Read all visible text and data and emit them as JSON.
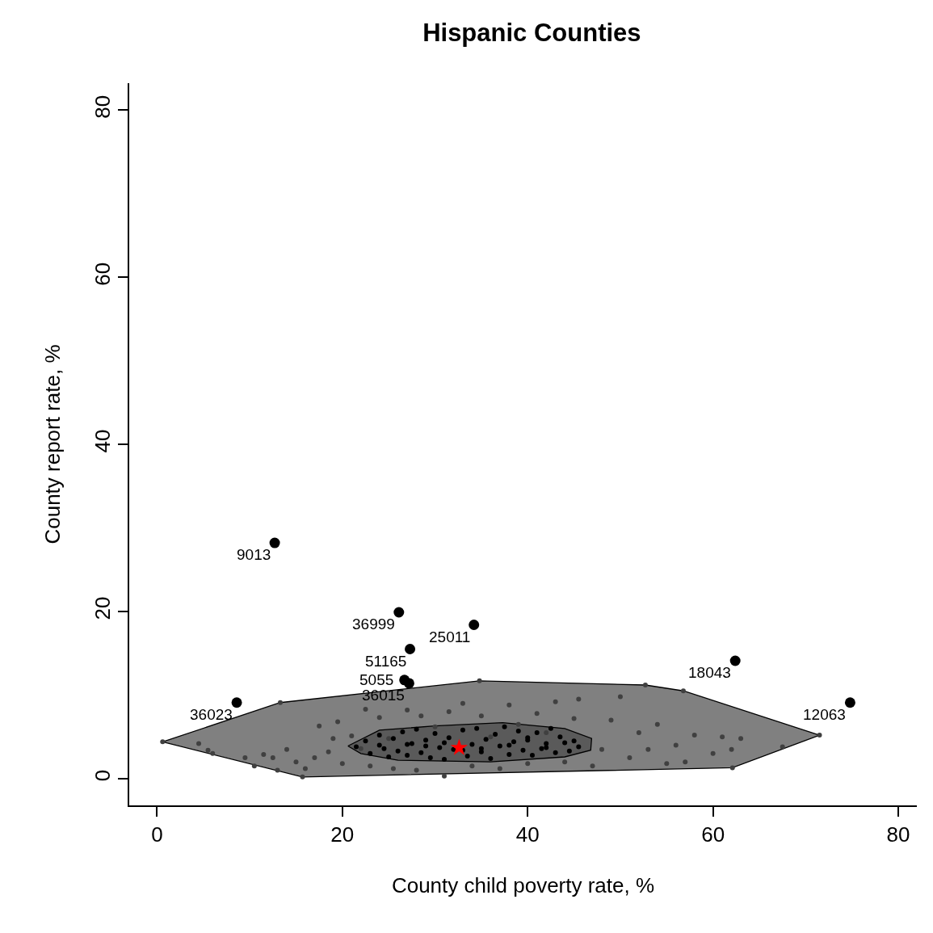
{
  "chart_data": {
    "type": "scatter",
    "title": "Hispanic Counties",
    "xlabel": "County child poverty rate, %",
    "ylabel": "County report rate, %",
    "xlim": [
      -3,
      82
    ],
    "ylim": [
      -3.2,
      83.2
    ],
    "xticks": [
      0,
      20,
      40,
      60,
      80
    ],
    "yticks": [
      0,
      20,
      40,
      60,
      80
    ],
    "series": [
      {
        "type": "area",
        "color": "#808080",
        "x": [
          0.6,
          13.3,
          34.8,
          52.7,
          56.8,
          71.5,
          62.1,
          15.7,
          0.6
        ],
        "values": [
          4.4,
          9.1,
          11.7,
          11.2,
          10.5,
          5.2,
          1.3,
          0.2,
          4.4
        ]
      },
      {
        "type": "area",
        "color": "#5a5a5a",
        "x": [
          20.6,
          24,
          30,
          37.3,
          44,
          46.9,
          46.8,
          44,
          36,
          26,
          22,
          20.6
        ],
        "values": [
          3.9,
          5.8,
          6.3,
          6.7,
          6.0,
          4.8,
          3.4,
          2.6,
          2.0,
          2.2,
          3.0,
          3.9
        ]
      },
      {
        "color": "#404040",
        "marker": "circle",
        "x": [
          4.5,
          5.5,
          6,
          9.5,
          10.5,
          11.5,
          12.5,
          13,
          14,
          15,
          16,
          17,
          17.5,
          18.5,
          19,
          19.5,
          20,
          21,
          22,
          22.5,
          23,
          24,
          25,
          25.5,
          27,
          28,
          28.5,
          30,
          31,
          31.5,
          33,
          34,
          35,
          36,
          37,
          38,
          39,
          40,
          41,
          42,
          43,
          44,
          45,
          45.5,
          47,
          48,
          49,
          50,
          51,
          52,
          53,
          54,
          55,
          56,
          57,
          58,
          60,
          61,
          62,
          63,
          67.5,
          52.7,
          56.8,
          71.5,
          62.1,
          15.7,
          0.6,
          13.3,
          34.8
        ],
        "values": [
          4.2,
          3.4,
          3.0,
          2.5,
          1.5,
          2.9,
          2.5,
          1.0,
          3.5,
          2.0,
          1.2,
          2.5,
          6.3,
          3.2,
          4.8,
          6.8,
          1.8,
          5.1,
          3.6,
          8.3,
          1.5,
          7.3,
          4.8,
          1.2,
          8.2,
          1.0,
          7.5,
          6.2,
          0.3,
          8.0,
          9.0,
          1.5,
          7.5,
          5.0,
          1.2,
          8.8,
          6.5,
          1.8,
          7.8,
          5.5,
          9.2,
          2.0,
          7.2,
          9.5,
          1.5,
          3.5,
          7.0,
          9.8,
          2.5,
          5.5,
          3.5,
          6.5,
          1.8,
          4.0,
          2.0,
          5.2,
          3.0,
          5.0,
          3.5,
          4.8,
          3.8,
          11.2,
          10.5,
          5.2,
          1.3,
          0.2,
          4.4,
          9.1,
          11.7
        ]
      },
      {
        "color": "#000000",
        "marker": "circle",
        "x": [
          21.5,
          22.5,
          23,
          24,
          24.5,
          25,
          25.5,
          26,
          26.5,
          27,
          27.5,
          28,
          28.5,
          29,
          29.5,
          30,
          30.5,
          31,
          31.5,
          32,
          33,
          33.5,
          34,
          34.5,
          35,
          35.5,
          36,
          36.5,
          37,
          37.5,
          38,
          38.5,
          39,
          39.5,
          40,
          40.5,
          41,
          41.5,
          42,
          42.5,
          43,
          43.5,
          44,
          44.5,
          45,
          45.5,
          29,
          31,
          35,
          38,
          27,
          33,
          40,
          24,
          42
        ],
        "values": [
          3.8,
          4.5,
          3.0,
          5.2,
          3.6,
          2.6,
          4.8,
          3.3,
          5.6,
          2.8,
          4.2,
          5.9,
          3.1,
          4.6,
          2.5,
          5.4,
          3.7,
          2.3,
          4.9,
          3.5,
          5.8,
          2.7,
          4.1,
          6.0,
          3.2,
          4.7,
          2.4,
          5.3,
          3.9,
          6.2,
          2.9,
          4.4,
          5.7,
          3.4,
          4.9,
          2.8,
          5.5,
          3.6,
          4.2,
          6.0,
          3.1,
          5.0,
          4.3,
          3.3,
          4.5,
          3.8,
          3.9,
          4.3,
          3.6,
          4.0,
          4.1,
          3.4,
          4.6,
          4.0,
          3.7
        ]
      },
      {
        "color": "#000000",
        "marker": "circle",
        "x": [
          12.7,
          26.1,
          34.2,
          27.3,
          26.7,
          27.2,
          62.4,
          74.8,
          8.6
        ],
        "values": [
          28.2,
          19.9,
          18.4,
          15.5,
          11.8,
          11.4,
          14.1,
          9.1,
          9.1
        ]
      },
      {
        "color": "#ff0000",
        "marker": "star",
        "x": [
          32.6
        ],
        "values": [
          3.7
        ]
      }
    ],
    "annotations": [
      {
        "text": "9013",
        "x": 12.7,
        "y": 28.2
      },
      {
        "text": "36999",
        "x": 26.1,
        "y": 19.9
      },
      {
        "text": "25011",
        "x": 34.2,
        "y": 18.4
      },
      {
        "text": "51165",
        "x": 27.3,
        "y": 15.5
      },
      {
        "text": "5055",
        "x": 26.7,
        "y": 11.8
      },
      {
        "text": "36015",
        "x": 27.2,
        "y": 11.4
      },
      {
        "text": "18043",
        "x": 62.4,
        "y": 14.1
      },
      {
        "text": "12063",
        "x": 74.8,
        "y": 9.1
      },
      {
        "text": "36023",
        "x": 8.6,
        "y": 9.1
      }
    ]
  }
}
